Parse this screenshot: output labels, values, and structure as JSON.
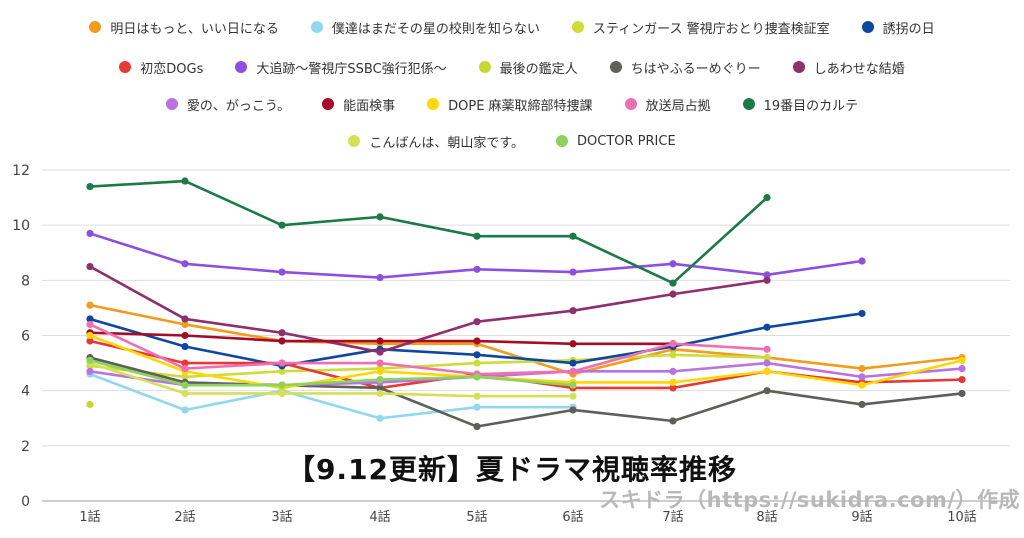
{
  "chart_data": {
    "type": "line",
    "title": "【9.12更新】夏ドラマ視聴率推移",
    "xlabel": "",
    "ylabel": "",
    "categories": [
      "1話",
      "2話",
      "3話",
      "4話",
      "5話",
      "6話",
      "7話",
      "8話",
      "9話",
      "10話"
    ],
    "ylim": [
      0,
      12
    ],
    "yticks": [
      0,
      2,
      4,
      6,
      8,
      10,
      12
    ],
    "grid": true,
    "legend": "top",
    "series": [
      {
        "name": "明日はもっと、いい日になる",
        "color": "#f29b1d",
        "values": [
          7.1,
          6.4,
          5.8,
          5.7,
          5.7,
          4.6,
          5.5,
          5.2,
          4.8,
          5.2
        ]
      },
      {
        "name": "僕達はまだその星の校則を知らない",
        "color": "#8fd8f0",
        "values": [
          4.6,
          3.3,
          4.0,
          3.0,
          3.4,
          3.4,
          null,
          null,
          null,
          null
        ]
      },
      {
        "name": "スティンガース 警視庁おとり捜査検証室",
        "color": "#cddc39",
        "values": [
          4.9,
          4.5,
          4.7,
          4.8,
          5.0,
          5.1,
          5.3,
          5.2,
          null,
          null
        ]
      },
      {
        "name": "誘拐の日",
        "color": "#0d47a1",
        "values": [
          6.6,
          5.6,
          4.9,
          5.5,
          5.3,
          5.0,
          5.6,
          6.3,
          6.8,
          null
        ]
      },
      {
        "name": "初恋DOGs",
        "color": "#e53935",
        "values": [
          5.8,
          5.0,
          5.0,
          4.1,
          4.6,
          4.1,
          4.1,
          4.7,
          4.3,
          4.4
        ]
      },
      {
        "name": "大追跡～警視庁SSBC強行犯係～",
        "color": "#8e4fe0",
        "values": [
          9.7,
          8.6,
          8.3,
          8.1,
          8.4,
          8.3,
          8.6,
          8.2,
          8.7,
          null
        ]
      },
      {
        "name": "最後の鑑定人",
        "color": "#c6d633",
        "values": [
          3.5,
          null,
          null,
          null,
          null,
          null,
          null,
          null,
          null,
          null
        ]
      },
      {
        "name": "ちはやふるーめぐりー",
        "color": "#5f5f5a",
        "values": [
          5.2,
          4.3,
          4.2,
          4.1,
          2.7,
          3.3,
          2.9,
          4.0,
          3.5,
          3.9
        ]
      },
      {
        "name": "しあわせな結婚",
        "color": "#8e2f6e",
        "values": [
          8.5,
          6.6,
          6.1,
          5.4,
          6.5,
          6.9,
          7.5,
          8.0,
          null,
          null
        ]
      },
      {
        "name": "愛の、がっこう。",
        "color": "#b873e0",
        "values": [
          4.7,
          4.2,
          4.2,
          4.3,
          4.5,
          4.7,
          4.7,
          5.0,
          4.5,
          4.8
        ]
      },
      {
        "name": "能面検事",
        "color": "#a50d25",
        "values": [
          6.1,
          6.0,
          5.8,
          5.8,
          5.8,
          5.7,
          5.7,
          null,
          null,
          null
        ]
      },
      {
        "name": "DOPE 麻薬取締部特捜課",
        "color": "#ffd600",
        "values": [
          6.0,
          4.7,
          4.1,
          4.7,
          4.5,
          4.3,
          4.3,
          4.7,
          4.2,
          5.1
        ]
      },
      {
        "name": "放送局占拠",
        "color": "#f06eb4",
        "values": [
          6.4,
          4.8,
          5.0,
          5.0,
          4.6,
          4.7,
          5.7,
          5.5,
          null,
          null
        ]
      },
      {
        "name": "19番目のカルテ",
        "color": "#1b7a46",
        "values": [
          11.4,
          11.6,
          10.0,
          10.3,
          9.6,
          9.6,
          7.9,
          11.0,
          null,
          null
        ]
      },
      {
        "name": "こんばんは、朝山家です。",
        "color": "#d4e157",
        "values": [
          5.0,
          3.9,
          3.9,
          3.9,
          3.8,
          3.8,
          null,
          null,
          null,
          null
        ]
      },
      {
        "name": "DOCTOR PRICE",
        "color": "#8bd35c",
        "values": [
          5.1,
          4.2,
          4.2,
          4.4,
          4.5,
          4.2,
          null,
          null,
          null,
          null
        ]
      }
    ]
  },
  "credit": "スキドラ（https://sukidra.com/）作成"
}
